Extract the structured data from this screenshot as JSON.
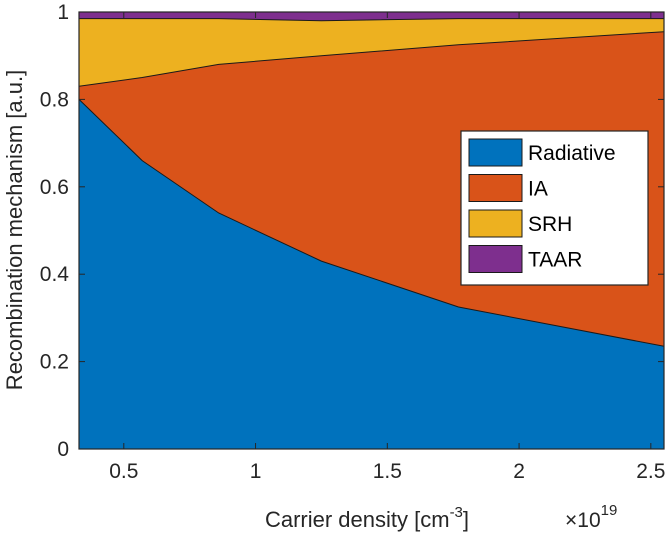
{
  "chart_data": {
    "type": "area",
    "stacked": true,
    "xlabel": "Carrier density [cm",
    "xlabel_sup": "-3",
    "xlabel_end": "]",
    "xmultiplier": "×10",
    "xmultiplier_exp": "19",
    "ylabel": "Recombination mechanism [a.u.]",
    "xlim": [
      0.33,
      2.55
    ],
    "ylim": [
      0,
      1
    ],
    "xticks": [
      0.5,
      1,
      1.5,
      2,
      2.5
    ],
    "xtick_labels": [
      "0.5",
      "1",
      "1.5",
      "2",
      "2.5"
    ],
    "yticks": [
      0,
      0.2,
      0.4,
      0.6,
      0.8,
      1
    ],
    "ytick_labels": [
      "0",
      "0.2",
      "0.4",
      "0.6",
      "0.8",
      "1"
    ],
    "grid": false,
    "legend_position": "center-right",
    "x": [
      0.33,
      0.57,
      0.86,
      1.25,
      1.77,
      2.55
    ],
    "series": [
      {
        "name": "Radiative",
        "color": "#0072BD",
        "values": [
          0.8,
          0.66,
          0.54,
          0.43,
          0.325,
          0.235
        ]
      },
      {
        "name": "IA",
        "color": "#D95319",
        "values": [
          0.03,
          0.19,
          0.34,
          0.47,
          0.6,
          0.72
        ]
      },
      {
        "name": "SRH",
        "color": "#EDB120",
        "values": [
          0.155,
          0.135,
          0.105,
          0.08,
          0.06,
          0.03
        ]
      },
      {
        "name": "TAAR",
        "color": "#7E2F8E",
        "values": [
          0.015,
          0.015,
          0.015,
          0.02,
          0.015,
          0.015
        ]
      }
    ]
  }
}
